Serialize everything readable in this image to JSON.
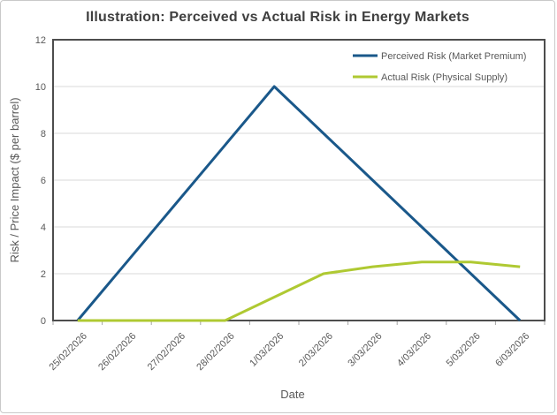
{
  "chart_data": {
    "type": "line",
    "title": "Illustration: Perceived vs Actual Risk in Energy Markets",
    "xlabel": "Date",
    "ylabel": "Risk / Price Impact ($ per barrel)",
    "ylim": [
      0,
      12
    ],
    "ytick_step": 2,
    "yticks": [
      0,
      2,
      4,
      6,
      8,
      10,
      12
    ],
    "grid": "horizontal",
    "legend_position": "top-right-inside",
    "categories": [
      "25/02/2026",
      "26/02/2026",
      "27/02/2026",
      "28/02/2026",
      "1/03/2026",
      "2/03/2026",
      "3/03/2026",
      "4/03/2026",
      "5/03/2026",
      "6/03/2026"
    ],
    "series": [
      {
        "name": "Perceived Risk (Market Premium)",
        "color": "#1A588A",
        "values": [
          0,
          2.5,
          5,
          7.5,
          10,
          8,
          6,
          4,
          2,
          0
        ]
      },
      {
        "name": "Actual Risk (Physical Supply)",
        "color": "#AFC932",
        "values": [
          0,
          0,
          0,
          0,
          1,
          2,
          2.3,
          2.5,
          2.5,
          2.3
        ]
      }
    ],
    "colors": {
      "plot_border": "#4d4d4d",
      "gridline": "#d9d9d9",
      "tick_mark": "#a6a6a6",
      "axis_text": "#595959",
      "title_text": "#3f3f3f"
    }
  }
}
